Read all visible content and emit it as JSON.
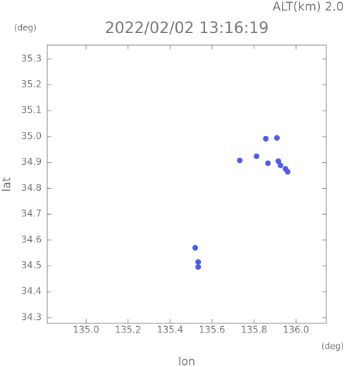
{
  "chart_data": {
    "type": "scatter",
    "title": "2022/02/02 13:16:19",
    "subtitle": "ALT(km) 2.0",
    "y_unit": "(deg)",
    "x_unit": "(deg)",
    "xlabel": "lon",
    "ylabel": "lat",
    "color": "#4a5af0",
    "x": [
      135.856,
      135.909,
      135.732,
      135.812,
      135.866,
      135.916,
      135.926,
      135.95,
      135.96,
      135.52,
      135.534,
      135.534
    ],
    "y": [
      34.992,
      34.995,
      34.908,
      34.924,
      34.897,
      34.905,
      34.889,
      34.875,
      34.864,
      34.57,
      34.515,
      34.496
    ],
    "xlim": [
      134.815,
      136.144
    ],
    "ylim": [
      34.278,
      35.354
    ],
    "xticks": [
      {
        "value": 135,
        "label": "135.0"
      },
      135.2,
      135.4,
      135.6,
      135.8,
      {
        "value": 136,
        "label": "136.0"
      }
    ],
    "yticks": [
      34.3,
      34.4,
      34.5,
      34.6,
      34.7,
      34.8,
      34.9,
      {
        "value": 35,
        "label": "35.0"
      },
      35.1,
      35.2,
      35.3
    ]
  }
}
